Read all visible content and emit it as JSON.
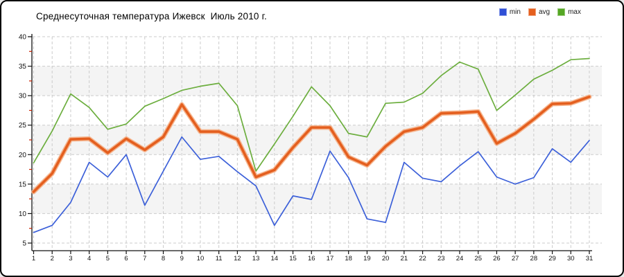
{
  "frame": {
    "background": "#ffffff",
    "border_color": "#000000"
  },
  "chart": {
    "title": "Среднесуточная температура Ижевск  Июль 2010 г."
  },
  "legend": {
    "position": "top-right",
    "items": [
      {
        "label": "min",
        "color": "#2F4FD6"
      },
      {
        "label": "avg",
        "color": "#E5601F"
      },
      {
        "label": "max",
        "color": "#55A724"
      }
    ]
  },
  "chart_data": {
    "type": "line",
    "title": "Среднесуточная температура Ижевск  Июль 2010 г.",
    "xlabel": "",
    "ylabel": "",
    "x": [
      1,
      2,
      3,
      4,
      5,
      6,
      7,
      8,
      9,
      10,
      11,
      12,
      13,
      14,
      15,
      16,
      17,
      18,
      19,
      20,
      21,
      22,
      23,
      24,
      25,
      26,
      27,
      28,
      29,
      30,
      31
    ],
    "series": [
      {
        "name": "min",
        "color": "#3C60D9",
        "width": 1.7,
        "values": [
          6.8,
          8.0,
          11.9,
          18.7,
          16.2,
          20.0,
          11.4,
          17.2,
          23.0,
          19.2,
          19.7,
          17.1,
          14.7,
          8.0,
          13.0,
          12.4,
          20.6,
          16.1,
          9.1,
          8.5,
          18.7,
          16.0,
          15.4,
          18.1,
          20.5,
          16.2,
          15.0,
          16.1,
          21.0,
          18.7,
          22.4
        ]
      },
      {
        "name": "avg",
        "color": "#E45F1F",
        "halo_color": "#F5AF85",
        "width": 3.6,
        "values": [
          13.7,
          16.8,
          22.6,
          22.7,
          20.3,
          22.7,
          20.8,
          23.0,
          28.5,
          23.9,
          23.9,
          22.6,
          16.2,
          17.4,
          21.2,
          24.6,
          24.6,
          19.6,
          18.2,
          21.4,
          23.9,
          24.6,
          27.0,
          27.1,
          27.3,
          21.9,
          23.6,
          26.0,
          28.6,
          28.7,
          29.8
        ]
      },
      {
        "name": "max",
        "color": "#6CAE3E",
        "width": 1.7,
        "values": [
          18.6,
          24.0,
          30.3,
          28.0,
          24.3,
          25.2,
          28.2,
          29.5,
          30.9,
          31.6,
          32.1,
          28.3,
          17.2,
          21.8,
          26.5,
          31.5,
          28.3,
          23.6,
          23.0,
          28.7,
          28.9,
          30.4,
          33.4,
          35.7,
          34.5,
          27.5,
          30.1,
          32.8,
          34.3,
          36.1,
          36.3
        ]
      }
    ],
    "ylim": [
      5,
      40
    ],
    "y_ticks": [
      5,
      10,
      15,
      20,
      25,
      30,
      35,
      40
    ],
    "y_minor_ticks": [
      7.5,
      12.5,
      17.5,
      22.5,
      27.5,
      32.5,
      37.5
    ],
    "y_minor_tick_color": "#CC2200",
    "grid": "dashed",
    "grid_color": "#CBCBCB",
    "band_ranges": [
      [
        10,
        15
      ],
      [
        20,
        25
      ],
      [
        30,
        35
      ]
    ],
    "band_color": "#F4F4F4",
    "axis_color": "#111111",
    "legend_position": "top-right"
  }
}
